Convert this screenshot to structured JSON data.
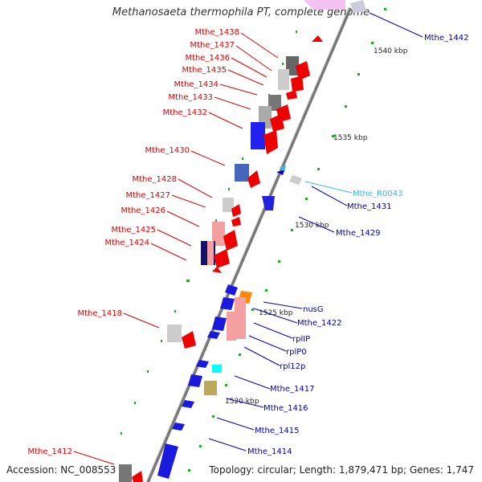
{
  "title": "Methanosaeta thermophila PT, complete genome",
  "accession": "Accession: NC_008553",
  "topology": "Topology: circular; Length: 1,879,471 bp; Genes: 1,747",
  "colors": {
    "forward_label": "#dd0000",
    "reverse_label": "#0000bb",
    "rna_label": "#33bbee",
    "backbone": "#888888",
    "tick": "#22aa22"
  },
  "scale_labels": [
    "1540 kbp",
    "1535 kbp",
    "1530 kbp",
    "1525 kbp",
    "1520 kbp"
  ],
  "forward_genes": [
    "Mthe_1438",
    "Mthe_1437",
    "Mthe_1436",
    "Mthe_1435",
    "Mthe_1434",
    "Mthe_1433",
    "Mthe_1432",
    "Mthe_1430",
    "Mthe_1428",
    "Mthe_1427",
    "Mthe_1426",
    "Mthe_1425",
    "Mthe_1424",
    "Mthe_1418",
    "Mthe_1412"
  ],
  "reverse_genes": [
    "Mthe_1442",
    "Mthe_1431",
    "Mthe_1429",
    "nusG",
    "Mthe_1422",
    "rplIP",
    "rplP0",
    "rpl12p",
    "Mthe_1417",
    "Mthe_1416",
    "Mthe_1415",
    "Mthe_1414"
  ],
  "rna_genes": [
    "Mthe_R0043"
  ]
}
